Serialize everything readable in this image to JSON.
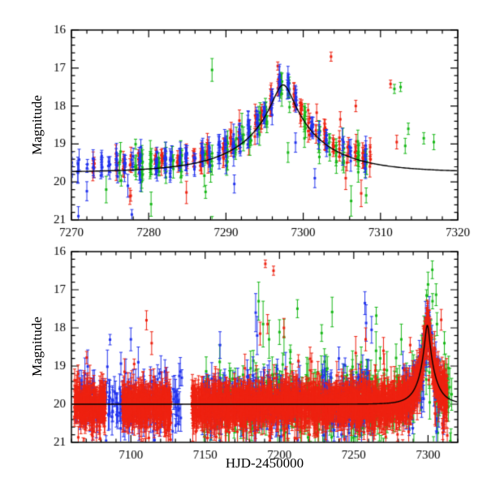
{
  "figure": {
    "background": "#ffffff",
    "ylabel": "Magnitude",
    "xlabel": "HJD-2450000"
  },
  "chart_data": [
    {
      "type": "scatter",
      "panel": "top",
      "title": "",
      "xlabel": "",
      "ylabel": "Magnitude",
      "xlim": [
        7270,
        7320
      ],
      "ylim": [
        21,
        16
      ],
      "x_major_step": 10,
      "x_minor_step": 2,
      "y_major_step": 1,
      "y_minor_step": 0.2,
      "x_tick_labels": [
        7270,
        7280,
        7290,
        7300,
        7310,
        7320
      ],
      "y_tick_labels": [
        16,
        17,
        18,
        19,
        20,
        21
      ],
      "grid": false,
      "legend": false,
      "seed": 42,
      "model_curve": {
        "color": "#000000",
        "t0": 7297.4,
        "tE": 10,
        "u0": 0.12,
        "baseline_mag": 19.75
      },
      "series": [
        {
          "name": "red-band",
          "color": "#ee2211",
          "marker": "square",
          "gen": {
            "kind": "nights",
            "night_start": 7270,
            "night_end": 7309,
            "skip_prob": 0.2,
            "ppn_min": 3,
            "ppn_max": 8,
            "t_offset": -0.22,
            "t_scatter": 0.12,
            "mag_offset": -0.15,
            "mag_noise": 0.16,
            "tail_prob": 0.05,
            "tail_scale": 0.7,
            "err_min": 0.08,
            "err_max": 0.3
          },
          "outliers": [
            [
              7303.6,
              16.7,
              0.12
            ],
            [
              7311.3,
              17.42,
              0.1
            ],
            [
              7312.1,
              18.95,
              0.18
            ],
            [
              7306.8,
              18.0,
              0.15
            ],
            [
              7304.8,
              18.35,
              0.2
            ],
            [
              7307.5,
              20.3,
              0.35
            ],
            [
              7305.5,
              19.9,
              0.3
            ]
          ]
        },
        {
          "name": "green-band",
          "color": "#17b817",
          "marker": "square",
          "gen": {
            "kind": "nights",
            "night_start": 7276,
            "night_end": 7309,
            "skip_prob": 0.25,
            "ppn_min": 3,
            "ppn_max": 8,
            "t_offset": 0.22,
            "t_scatter": 0.12,
            "mag_offset": -0.05,
            "mag_noise": 0.2,
            "tail_prob": 0.07,
            "tail_scale": 0.8,
            "err_min": 0.1,
            "err_max": 0.35
          },
          "outliers": [
            [
              7288.2,
              17.05,
              0.3
            ],
            [
              7311.8,
              17.55,
              0.12
            ],
            [
              7312.6,
              17.5,
              0.12
            ],
            [
              7313.6,
              18.6,
              0.15
            ],
            [
              7315.6,
              18.85,
              0.15
            ],
            [
              7316.9,
              18.95,
              0.2
            ],
            [
              7313.2,
              19.05,
              0.2
            ],
            [
              7306.2,
              20.5,
              0.4
            ],
            [
              7274.5,
              20.2,
              0.35
            ]
          ]
        },
        {
          "name": "blue-band",
          "color": "#2233ee",
          "marker": "square",
          "gen": {
            "kind": "nights",
            "night_start": 7270,
            "night_end": 7308,
            "skip_prob": 0.2,
            "ppn_min": 3,
            "ppn_max": 8,
            "t_offset": 0.0,
            "t_scatter": 0.12,
            "mag_offset": -0.12,
            "mag_noise": 0.17,
            "tail_prob": 0.04,
            "tail_scale": 0.7,
            "err_min": 0.08,
            "err_max": 0.3
          },
          "outliers": [
            [
              7270.9,
              20.9,
              0.25
            ],
            [
              7277.3,
              20.1,
              0.3
            ],
            [
              7301.5,
              19.9,
              0.25
            ]
          ]
        }
      ]
    },
    {
      "type": "scatter",
      "panel": "bottom",
      "title": "",
      "xlabel": "HJD-2450000",
      "ylabel": "Magnitude",
      "xlim": [
        7060,
        7320
      ],
      "ylim": [
        21,
        16
      ],
      "x_major_step": 50,
      "x_minor_step": 10,
      "y_major_step": 1,
      "y_minor_step": 0.2,
      "x_tick_labels": [
        7100,
        7150,
        7200,
        7250,
        7300
      ],
      "y_tick_labels": [
        16,
        17,
        18,
        19,
        20,
        21
      ],
      "grid": false,
      "legend": false,
      "seed": 77,
      "model_curve": {
        "color": "#000000",
        "t0": 7299.5,
        "tE": 10,
        "u0": 0.15,
        "baseline_mag": 20.0
      },
      "series": [
        {
          "name": "green-band",
          "color": "#17b817",
          "marker": "square",
          "gen": {
            "kind": "ranges",
            "ranges": [
              [
                7148,
                7316
              ]
            ],
            "n": 430,
            "mag_offset": -0.05,
            "mag_noise": 0.45,
            "tail_prob": 0.12,
            "tail_scale": 0.8,
            "up_prob": 0.06,
            "up_scale": 1.0,
            "err_min": 0.15,
            "err_max": 0.55
          },
          "outliers": [
            [
              7186,
              17.3,
              0.5
            ],
            [
              7189,
              17.9,
              0.6
            ],
            [
              7193,
              18.3,
              0.5
            ],
            [
              7299,
              17.15,
              0.15
            ],
            [
              7303,
              17.3,
              0.2
            ],
            [
              7306,
              17.9,
              0.3
            ],
            [
              7282,
              18.3,
              0.4
            ],
            [
              7265,
              18.6,
              0.5
            ],
            [
              7255,
              18.9,
              0.4
            ],
            [
              7311,
              18.4,
              0.3
            ]
          ]
        },
        {
          "name": "blue-band",
          "color": "#2233ee",
          "marker": "square",
          "gen": {
            "kind": "ranges",
            "ranges": [
              [
                7063,
                7135
              ],
              [
                7148,
                7215
              ],
              [
                7228,
                7263
              ],
              [
                7283,
                7312
              ]
            ],
            "n": 680,
            "mag_offset": -0.05,
            "mag_noise": 0.3,
            "tail_prob": 0.1,
            "tail_scale": 0.7,
            "up_prob": 0.04,
            "up_scale": 0.9,
            "err_min": 0.12,
            "err_max": 0.5
          },
          "outliers": [
            [
              7100,
              18.3,
              0.3
            ],
            [
              7257.5,
              17.35,
              0.3
            ],
            [
              7262,
              18.05,
              0.35
            ],
            [
              7240,
              18.8,
              0.3
            ],
            [
              7160,
              18.45,
              0.35
            ],
            [
              7105,
              18.9,
              0.4
            ],
            [
              7184,
              17.6,
              0.5
            ],
            [
              7185,
              18.2,
              0.5
            ]
          ]
        },
        {
          "name": "red-band",
          "color": "#ee2211",
          "marker": "square",
          "gen": {
            "kind": "ranges",
            "ranges": [
              [
                7062,
                7083
              ],
              [
                7094,
                7127
              ],
              [
                7141,
                7313
              ]
            ],
            "n": 2800,
            "mag_offset": 0.0,
            "mag_noise": 0.22,
            "tail_prob": 0.08,
            "tail_scale": 0.55,
            "up_prob": 0.03,
            "up_scale": 0.55,
            "err_min": 0.12,
            "err_max": 0.45
          },
          "outliers": [
            [
              7190.5,
              16.32,
              0.1
            ],
            [
              7196,
              16.5,
              0.12
            ],
            [
              7110.5,
              17.8,
              0.25
            ],
            [
              7114,
              18.4,
              0.3
            ],
            [
              7187,
              18.15,
              0.3
            ],
            [
              7192,
              17.9,
              0.25
            ],
            [
              7203,
              18.0,
              0.25
            ],
            [
              7258,
              18.3,
              0.3
            ],
            [
              7270,
              18.6,
              0.35
            ],
            [
              7288,
              18.45,
              0.2
            ]
          ]
        }
      ]
    }
  ]
}
